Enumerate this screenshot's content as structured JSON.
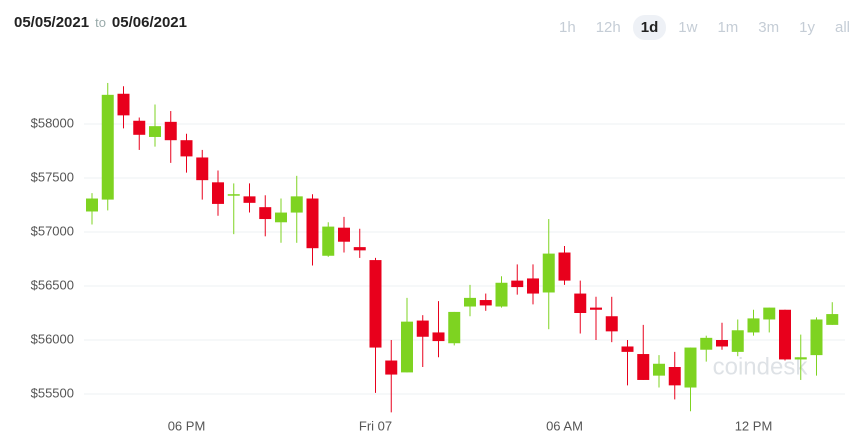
{
  "header": {
    "from": "05/05/2021",
    "to_word": "to",
    "to": "05/06/2021"
  },
  "ranges": {
    "options": [
      "1h",
      "12h",
      "1d",
      "1w",
      "1m",
      "3m",
      "1y",
      "all"
    ],
    "active": 2
  },
  "chart_data": {
    "type": "candlestick",
    "watermark": "coindesk",
    "categories": [
      null,
      null,
      null,
      null,
      null,
      null,
      "06 PM",
      null,
      null,
      null,
      null,
      null,
      null,
      null,
      null,
      null,
      null,
      null,
      "Fri 07",
      null,
      null,
      null,
      null,
      null,
      null,
      null,
      null,
      null,
      null,
      null,
      "06 AM",
      null,
      null,
      null,
      null,
      null,
      null,
      null,
      null,
      null,
      null,
      null,
      "12 PM",
      null,
      null,
      null,
      null,
      null
    ],
    "open": [
      57190,
      57300,
      58280,
      58030,
      57880,
      58020,
      57850,
      57690,
      57460,
      57340,
      57330,
      57230,
      57090,
      57180,
      57310,
      56780,
      57040,
      56860,
      56740,
      55810,
      55700,
      56180,
      56070,
      55970,
      56310,
      56370,
      56310,
      56550,
      56570,
      56440,
      56810,
      56430,
      56300,
      56220,
      55940,
      55870,
      55670,
      55750,
      55560,
      55910,
      56000,
      55890,
      56070,
      56190,
      56280,
      55820,
      55860,
      56140
    ],
    "high": [
      57360,
      58380,
      58350,
      58060,
      58180,
      58120,
      57910,
      57760,
      57570,
      57450,
      57450,
      57340,
      57310,
      57520,
      57350,
      57090,
      57140,
      57030,
      56760,
      56000,
      56390,
      56230,
      56360,
      56260,
      56510,
      56430,
      56590,
      56700,
      56700,
      57120,
      56870,
      56550,
      56400,
      56400,
      56000,
      56140,
      55860,
      55890,
      55930,
      56040,
      56160,
      56190,
      56280,
      56300,
      56280,
      56050,
      56210,
      56350
    ],
    "low": [
      57070,
      57200,
      57960,
      57760,
      57790,
      57640,
      57550,
      57300,
      57150,
      56980,
      57180,
      56960,
      56900,
      56900,
      56690,
      56770,
      56810,
      56760,
      55510,
      55330,
      55700,
      55750,
      55840,
      55950,
      56220,
      56270,
      56300,
      56420,
      56330,
      56100,
      56510,
      56060,
      56000,
      55980,
      55580,
      55630,
      55560,
      55450,
      55340,
      55800,
      55910,
      55850,
      56040,
      56070,
      55810,
      55630,
      55670,
      56140
    ],
    "close": [
      57310,
      58270,
      58080,
      57900,
      57980,
      57850,
      57700,
      57480,
      57260,
      57350,
      57270,
      57120,
      57180,
      57330,
      56850,
      57050,
      56910,
      56830,
      55930,
      55680,
      56170,
      56030,
      55990,
      56260,
      56390,
      56320,
      56530,
      56490,
      56430,
      56800,
      56550,
      56250,
      56280,
      56080,
      55890,
      55630,
      55780,
      55580,
      55930,
      56020,
      55940,
      56090,
      56200,
      56300,
      55820,
      55840,
      56190,
      56240
    ],
    "up_color": "#7ed321",
    "down_color": "#e8001c",
    "ylim": [
      55250,
      58500
    ],
    "yticks": [
      {
        "value": 55500,
        "label": "$55500"
      },
      {
        "value": 56000,
        "label": "$56000"
      },
      {
        "value": 56500,
        "label": "$56500"
      },
      {
        "value": 57000,
        "label": "$57000"
      },
      {
        "value": 57500,
        "label": "$57500"
      },
      {
        "value": 58000,
        "label": "$58000"
      }
    ],
    "grid": true
  }
}
